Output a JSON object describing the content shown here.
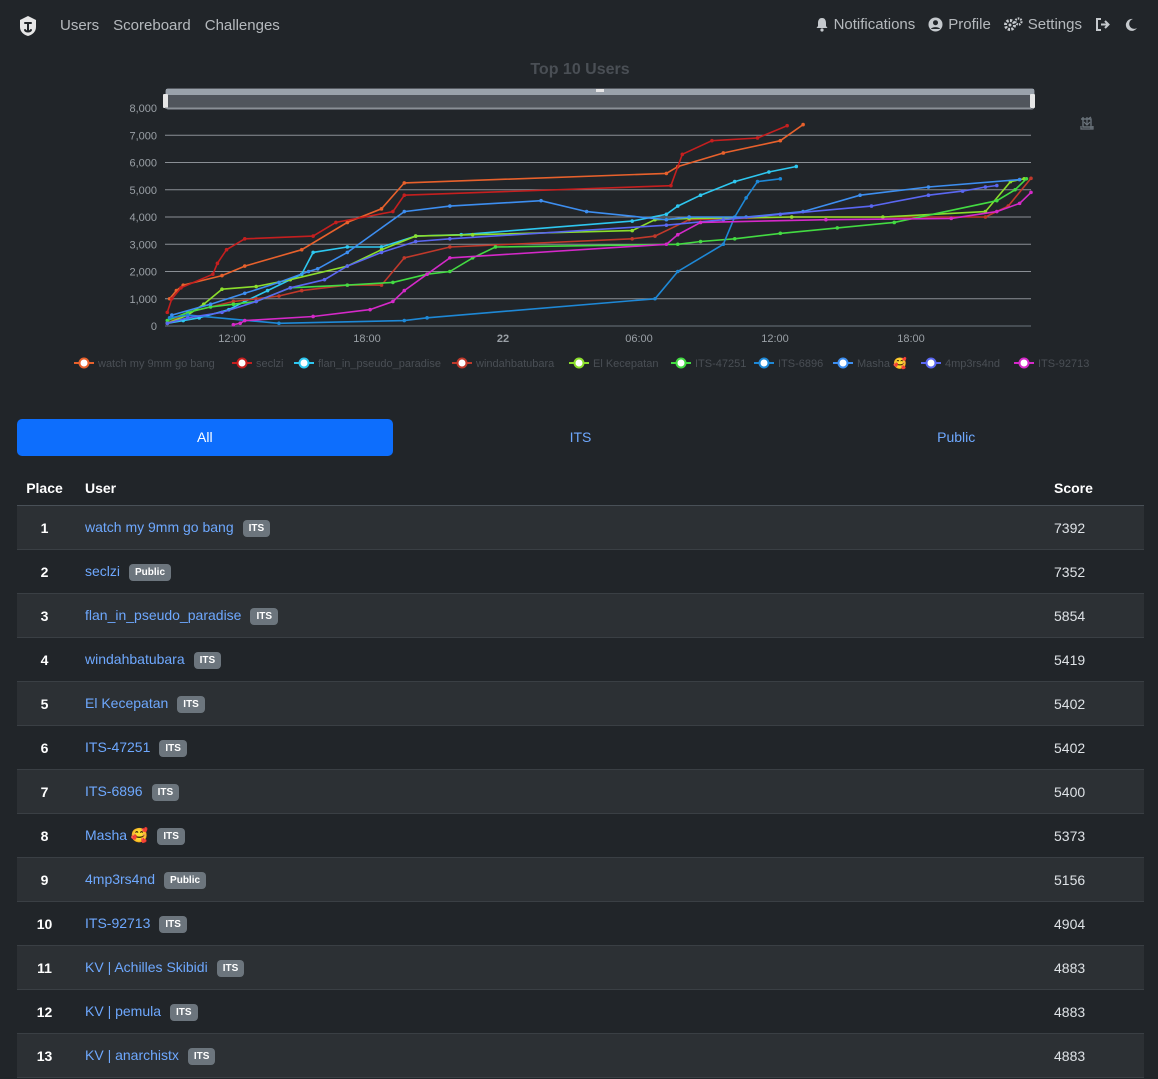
{
  "nav": {
    "left": [
      {
        "label": "Users"
      },
      {
        "label": "Scoreboard"
      },
      {
        "label": "Challenges"
      }
    ],
    "right": [
      {
        "label": "Notifications",
        "icon": "bell-icon"
      },
      {
        "label": "Profile",
        "icon": "user-circle-icon"
      },
      {
        "label": "Settings",
        "icon": "gears-icon"
      }
    ]
  },
  "chart_data": {
    "type": "line",
    "title": "Top 10 Users",
    "x_axis_labels": [
      "12:00",
      "18:00",
      "22",
      "06:00",
      "12:00",
      "18:00"
    ],
    "y_ticks": [
      0,
      1000,
      2000,
      3000,
      4000,
      5000,
      6000,
      7000,
      8000
    ],
    "ylim": [
      0,
      8000
    ],
    "xlim_hours": [
      9.5,
      47.5
    ],
    "legend_placement": "bottom",
    "series": [
      {
        "name": "watch my 9mm go bang",
        "color": "#e8612c",
        "x": [
          9.7,
          10.0,
          10.3,
          12.0,
          13.0,
          15.5,
          17.5,
          19.0,
          20.0,
          31.5,
          32.0,
          34.0,
          36.5,
          37.5
        ],
        "y": [
          1000,
          1300,
          1500,
          1850,
          2200,
          2800,
          3800,
          4300,
          5250,
          5600,
          5850,
          6350,
          6800,
          7392
        ]
      },
      {
        "name": "seclzi",
        "color": "#c51f1f",
        "x": [
          9.6,
          9.8,
          10.2,
          11.6,
          11.8,
          12.2,
          13.0,
          16.0,
          17.0,
          19.5,
          20.0,
          31.7,
          32.2,
          33.5,
          35.5,
          36.8
        ],
        "y": [
          500,
          1000,
          1400,
          1900,
          2300,
          2800,
          3200,
          3300,
          3800,
          4200,
          4800,
          5150,
          6300,
          6800,
          6900,
          7352
        ]
      },
      {
        "name": "flan_in_pseudo_paradise",
        "color": "#2ec7f0",
        "x": [
          9.6,
          10.3,
          11.0,
          12.3,
          13.0,
          14.0,
          15.5,
          16.0,
          17.5,
          19.0,
          20.5,
          22.5,
          30.0,
          31.5,
          32.0,
          33.0,
          34.5,
          36.0,
          37.2
        ],
        "y": [
          100,
          200,
          300,
          600,
          900,
          1300,
          1900,
          2700,
          2900,
          2900,
          3300,
          3350,
          3850,
          4100,
          4400,
          4800,
          5300,
          5650,
          5854
        ]
      },
      {
        "name": "windahbatubara",
        "color": "#c0392b",
        "x": [
          9.6,
          10.5,
          12.5,
          13.5,
          14.5,
          15.5,
          17.5,
          19.0,
          20.0,
          22.0,
          30.0,
          31.0,
          32.5,
          37.0,
          45.5,
          46.5,
          47.5
        ],
        "y": [
          100,
          500,
          900,
          1000,
          1100,
          1300,
          1500,
          1500,
          2500,
          2900,
          3200,
          3300,
          3900,
          4000,
          4000,
          4400,
          5419
        ]
      },
      {
        "name": "El Kecepatan",
        "color": "#8bde2c",
        "x": [
          9.6,
          10.5,
          11.2,
          12.0,
          13.5,
          15.0,
          17.5,
          19.0,
          20.5,
          23.0,
          30.0,
          31.0,
          32.5,
          37.0,
          41.0,
          45.5,
          46.6,
          47.2
        ],
        "y": [
          100,
          400,
          800,
          1350,
          1450,
          1700,
          2200,
          2800,
          3300,
          3350,
          3500,
          3900,
          3950,
          4000,
          4000,
          4200,
          5300,
          5402
        ]
      },
      {
        "name": "ITS-47251",
        "color": "#43db42",
        "x": [
          9.6,
          10.5,
          11.5,
          12.5,
          13.5,
          15.0,
          17.5,
          19.5,
          21.0,
          22.0,
          23.0,
          24.0,
          32.0,
          33.0,
          34.5,
          36.5,
          39.0,
          41.5,
          46.0,
          46.8,
          47.3
        ],
        "y": [
          200,
          500,
          700,
          800,
          900,
          1400,
          1500,
          1600,
          1900,
          2000,
          2500,
          2900,
          3000,
          3100,
          3200,
          3400,
          3600,
          3800,
          4600,
          5000,
          5402
        ]
      },
      {
        "name": "ITS-6896",
        "color": "#1e88d6",
        "x": [
          9.7,
          10.5,
          14.5,
          20.0,
          21.0,
          31.0,
          32.0,
          34.0,
          34.5,
          35.0,
          35.5,
          36.5
        ],
        "y": [
          300,
          400,
          100,
          200,
          300,
          1000,
          2000,
          3000,
          4000,
          4700,
          5300,
          5400
        ]
      },
      {
        "name": "Masha 🥰",
        "color": "#3d8ef0",
        "x": [
          9.8,
          11.5,
          13.0,
          14.5,
          15.8,
          16.2,
          17.5,
          20.0,
          22.0,
          26.0,
          28.0,
          31.5,
          32.5,
          35.0,
          37.5,
          40.0,
          43.0,
          47.0
        ],
        "y": [
          400,
          800,
          1200,
          1600,
          2000,
          2100,
          2700,
          4200,
          4400,
          4600,
          4200,
          3900,
          4000,
          4000,
          4200,
          4800,
          5100,
          5373
        ]
      },
      {
        "name": "4mp3rs4nd",
        "color": "#5a67f2",
        "x": [
          9.6,
          10.5,
          12.0,
          13.5,
          15.0,
          16.5,
          17.5,
          19.0,
          20.5,
          22.0,
          31.5,
          34.0,
          36.5,
          40.5,
          43.0,
          44.5,
          45.5,
          46.0
        ],
        "y": [
          100,
          300,
          500,
          900,
          1400,
          1700,
          2200,
          2700,
          3100,
          3200,
          3700,
          3900,
          4100,
          4400,
          4800,
          4950,
          5100,
          5156
        ]
      },
      {
        "name": "ITS-92713",
        "color": "#d529c9",
        "x": [
          12.5,
          12.8,
          13.0,
          16.0,
          18.5,
          19.5,
          20.0,
          21.0,
          22.0,
          31.5,
          32.0,
          33.0,
          38.5,
          44.0,
          46.0,
          47.0,
          47.5
        ],
        "y": [
          50,
          100,
          200,
          350,
          600,
          900,
          1300,
          1900,
          2500,
          3000,
          3350,
          3800,
          3900,
          3950,
          4200,
          4500,
          4904
        ]
      }
    ]
  },
  "tabs": [
    {
      "label": "All",
      "active": true
    },
    {
      "label": "ITS",
      "active": false
    },
    {
      "label": "Public",
      "active": false
    }
  ],
  "table": {
    "headers": {
      "place": "Place",
      "user": "User",
      "score": "Score"
    },
    "rows": [
      {
        "place": "1",
        "user": "watch my 9mm go bang",
        "badge": "ITS",
        "score": "7392"
      },
      {
        "place": "2",
        "user": "seclzi",
        "badge": "Public",
        "score": "7352"
      },
      {
        "place": "3",
        "user": "flan_in_pseudo_paradise",
        "badge": "ITS",
        "score": "5854"
      },
      {
        "place": "4",
        "user": "windahbatubara",
        "badge": "ITS",
        "score": "5419"
      },
      {
        "place": "5",
        "user": "El Kecepatan",
        "badge": "ITS",
        "score": "5402"
      },
      {
        "place": "6",
        "user": "ITS-47251",
        "badge": "ITS",
        "score": "5402"
      },
      {
        "place": "7",
        "user": "ITS-6896",
        "badge": "ITS",
        "score": "5400"
      },
      {
        "place": "8",
        "user": "Masha 🥰",
        "badge": "ITS",
        "score": "5373"
      },
      {
        "place": "9",
        "user": "4mp3rs4nd",
        "badge": "Public",
        "score": "5156"
      },
      {
        "place": "10",
        "user": "ITS-92713",
        "badge": "ITS",
        "score": "4904"
      },
      {
        "place": "11",
        "user": "KV | Achilles Skibidi",
        "badge": "ITS",
        "score": "4883"
      },
      {
        "place": "12",
        "user": "KV | pemula",
        "badge": "ITS",
        "score": "4883"
      },
      {
        "place": "13",
        "user": "KV | anarchistx",
        "badge": "ITS",
        "score": "4883"
      }
    ]
  }
}
